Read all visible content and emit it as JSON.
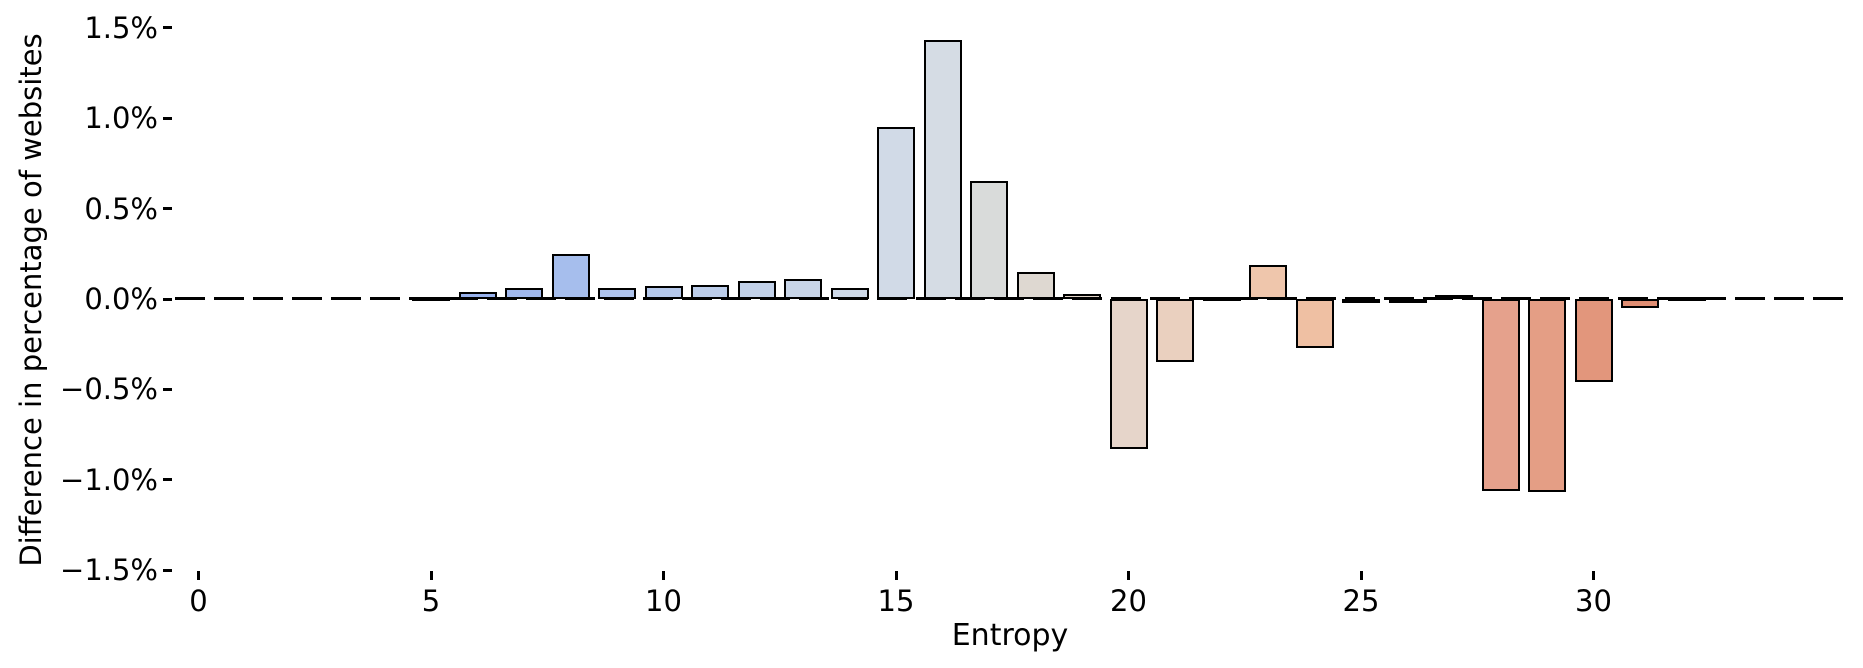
{
  "figure": {
    "background": "#ffffff",
    "text_color": "#000000"
  },
  "chart_data": {
    "type": "bar",
    "title": "",
    "xlabel": "Entropy",
    "ylabel": "Difference in percentage of websites",
    "grid": false,
    "legend": false,
    "zero_line": {
      "style": "dashed",
      "color": "#000000",
      "y": 0
    },
    "xlim": [
      -0.6,
      35.6
    ],
    "ylim": [
      -1.55,
      1.6
    ],
    "x_ticks": [
      0,
      5,
      10,
      15,
      20,
      25,
      30
    ],
    "y_ticks": [
      {
        "label": "1.5%",
        "value": 1.5
      },
      {
        "label": "1.0%",
        "value": 1.0
      },
      {
        "label": "0.5%",
        "value": 0.5
      },
      {
        "label": "0.0%",
        "value": 0.0
      },
      {
        "label": "−0.5%",
        "value": -0.5
      },
      {
        "label": "−1.0%",
        "value": -1.0
      },
      {
        "label": "−1.5%",
        "value": -1.5
      }
    ],
    "x": [
      5,
      6,
      7,
      8,
      9,
      10,
      11,
      12,
      13,
      14,
      15,
      16,
      17,
      18,
      19,
      20,
      21,
      22,
      23,
      24,
      25,
      26,
      27,
      28,
      29,
      30,
      31,
      32
    ],
    "values": [
      0.01,
      0.04,
      0.06,
      0.25,
      0.06,
      0.07,
      0.08,
      0.1,
      0.11,
      0.06,
      0.95,
      1.43,
      0.65,
      0.15,
      0.03,
      -0.83,
      -0.35,
      0.0,
      0.19,
      -0.27,
      -0.02,
      -0.02,
      0.02,
      -1.06,
      -1.07,
      -0.46,
      -0.05,
      0.0
    ],
    "bar_colors": [
      "#90aced",
      "#98b2ed",
      "#a0b8ed",
      "#a6beed",
      "#aec3ec",
      "#b5c8eb",
      "#bccdea",
      "#c2d1e9",
      "#c8d5e8",
      "#cdd8e7",
      "#d1dae7",
      "#d5dce4",
      "#d9dbda",
      "#ded8d1",
      "#e2d5c9",
      "#e6d5ca",
      "#ead0bf",
      "#edccb6",
      "#efc6ac",
      "#efc0a3",
      "#efba99",
      "#eeb491",
      "#ecae89",
      "#e5a18c",
      "#e49e85",
      "#e2967c",
      "#e08e73",
      "#dd866a"
    ],
    "bar_edge_color": "#000000"
  }
}
